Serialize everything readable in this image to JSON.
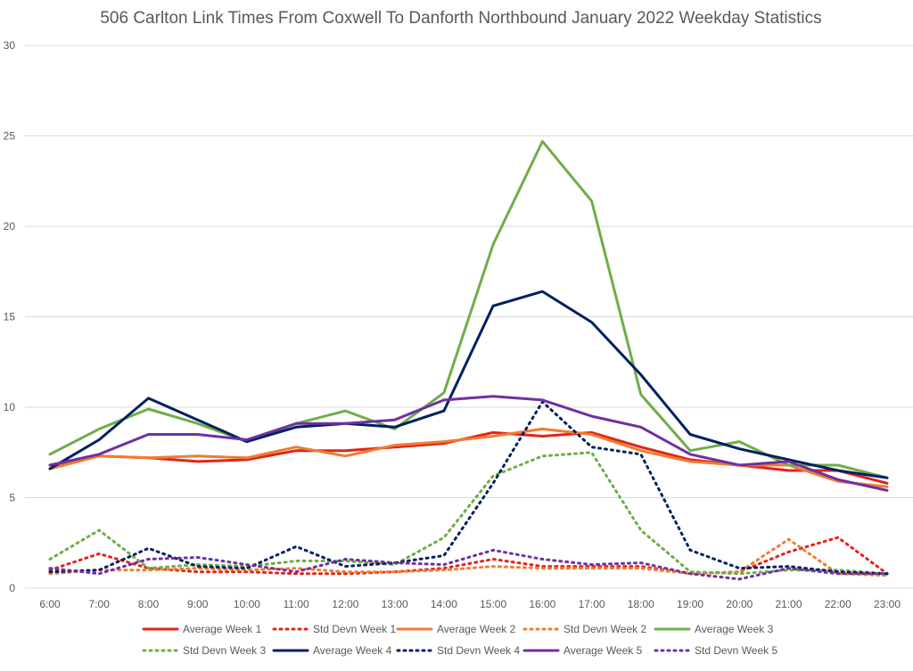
{
  "chart_data": {
    "type": "line",
    "title": "506 Carlton Link Times From Coxwell To Danforth Northbound January 2022 Weekday Statistics",
    "xlabel": "",
    "ylabel": "",
    "ylim": [
      0,
      30
    ],
    "yticks": [
      "0",
      "5",
      "10",
      "15",
      "20",
      "25",
      "30"
    ],
    "grid": "horizontal",
    "legend_position": "bottom",
    "categories": [
      "6:00",
      "7:00",
      "8:00",
      "9:00",
      "10:00",
      "11:00",
      "12:00",
      "13:00",
      "14:00",
      "15:00",
      "16:00",
      "17:00",
      "18:00",
      "19:00",
      "20:00",
      "21:00",
      "22:00",
      "23:00"
    ],
    "series": [
      {
        "name": "Average Week 1",
        "style": "solid",
        "color": "#e2231a",
        "values": [
          6.8,
          7.3,
          7.2,
          7.0,
          7.1,
          7.6,
          7.6,
          7.8,
          8.0,
          8.6,
          8.4,
          8.6,
          7.8,
          7.1,
          6.8,
          6.5,
          6.5,
          5.8
        ]
      },
      {
        "name": "Std Devn Week 1",
        "style": "dotted",
        "color": "#e2231a",
        "values": [
          1.0,
          1.9,
          1.1,
          0.9,
          0.9,
          0.8,
          0.8,
          0.9,
          1.1,
          1.6,
          1.2,
          1.2,
          1.2,
          0.8,
          0.9,
          2.0,
          2.8,
          0.8
        ]
      },
      {
        "name": "Average Week 2",
        "style": "solid",
        "color": "#ed7d31",
        "values": [
          6.6,
          7.3,
          7.2,
          7.3,
          7.2,
          7.8,
          7.3,
          7.9,
          8.1,
          8.4,
          8.8,
          8.5,
          7.6,
          7.0,
          6.8,
          6.8,
          5.9,
          5.6
        ]
      },
      {
        "name": "Std Devn Week 2",
        "style": "dotted",
        "color": "#ed7d31",
        "values": [
          0.8,
          1.0,
          1.0,
          1.1,
          1.0,
          1.1,
          0.9,
          0.9,
          1.0,
          1.2,
          1.1,
          1.1,
          1.1,
          0.8,
          0.9,
          2.7,
          0.8,
          0.7
        ]
      },
      {
        "name": "Average Week 3",
        "style": "solid",
        "color": "#70ad47",
        "values": [
          7.4,
          8.8,
          9.9,
          9.1,
          8.1,
          9.1,
          9.8,
          8.8,
          10.8,
          19.0,
          24.7,
          21.4,
          10.7,
          7.6,
          8.1,
          6.8,
          6.8,
          6.1
        ]
      },
      {
        "name": "Std Devn Week 3",
        "style": "dotted",
        "color": "#70ad47",
        "values": [
          1.6,
          3.2,
          1.1,
          1.3,
          1.2,
          1.5,
          1.5,
          1.3,
          2.8,
          6.2,
          7.3,
          7.5,
          3.2,
          0.9,
          0.8,
          1.0,
          1.0,
          0.8
        ]
      },
      {
        "name": "Average Week 4",
        "style": "solid",
        "color": "#002060",
        "values": [
          6.6,
          8.2,
          10.5,
          9.3,
          8.1,
          8.9,
          9.1,
          8.9,
          9.8,
          15.6,
          16.4,
          14.7,
          11.8,
          8.5,
          7.7,
          7.1,
          6.5,
          6.1
        ]
      },
      {
        "name": "Std Devn Week 4",
        "style": "dotted",
        "color": "#002060",
        "values": [
          0.9,
          1.0,
          2.2,
          1.2,
          1.1,
          2.3,
          1.2,
          1.4,
          1.8,
          5.8,
          10.3,
          7.8,
          7.4,
          2.1,
          1.1,
          1.2,
          0.9,
          0.8
        ]
      },
      {
        "name": "Average Week 5",
        "style": "solid",
        "color": "#7030a0",
        "values": [
          6.8,
          7.4,
          8.5,
          8.5,
          8.2,
          9.1,
          9.1,
          9.3,
          10.4,
          10.6,
          10.4,
          9.5,
          8.9,
          7.4,
          6.8,
          7.0,
          6.0,
          5.4
        ]
      },
      {
        "name": "Std Devn Week 5",
        "style": "dotted",
        "color": "#7030a0",
        "values": [
          1.1,
          0.8,
          1.6,
          1.7,
          1.3,
          0.9,
          1.6,
          1.4,
          1.3,
          2.1,
          1.6,
          1.3,
          1.4,
          0.8,
          0.5,
          1.1,
          0.8,
          0.8
        ]
      }
    ]
  }
}
